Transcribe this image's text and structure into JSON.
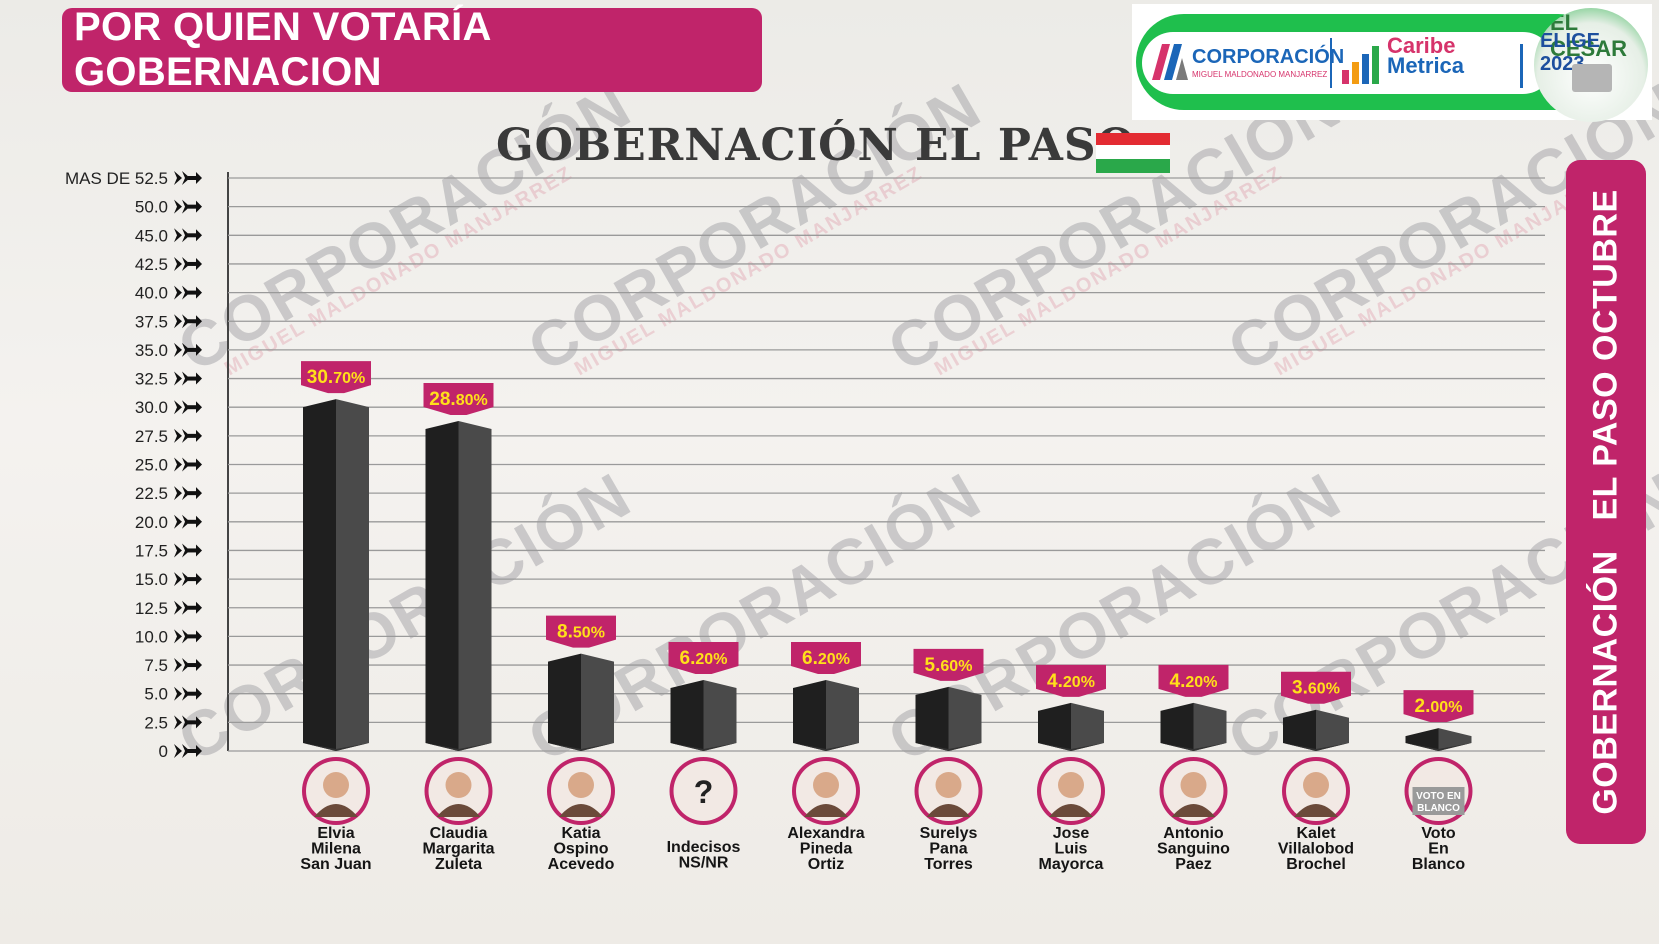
{
  "header": {
    "title": "POR QUIEN VOTARÍA GOBERNACION",
    "subtitle": "GOBERNACIÓN EL PASO",
    "side_label": "GOBERNACIÓN   EL PASO OCTUBRE"
  },
  "logos": {
    "corporacion": "CORPORACIÓN",
    "corporacion_sub": "MIGUEL MALDONADO MANJARREZ",
    "caribe": "Caribe",
    "metrica": "Metrica",
    "cesar": "EL CESAR",
    "elige": "ELIGE 2023"
  },
  "watermark": {
    "text": "CORPORACIÓN",
    "sub": "MIGUEL MALDONADO MANJARREZ"
  },
  "colors": {
    "accent": "#c0246a",
    "bar_front": "#1f1f1f",
    "bar_side": "#4a4a4a",
    "label_yellow": "#ffe01a",
    "flag_red": "#e32b32",
    "flag_green": "#2aa84a"
  },
  "chart_data": {
    "type": "bar",
    "title": "GOBERNACIÓN EL PASO",
    "y_ticks": [
      "MAS DE 52.5",
      "50.0",
      "45.0",
      "42.5",
      "40.0",
      "37.5",
      "35.0",
      "32.5",
      "30.0",
      "27.5",
      "25.0",
      "22.5",
      "20.0",
      "17.5",
      "15.0",
      "12.5",
      "10.0",
      "7.5",
      "5.0",
      "2.5",
      "0"
    ],
    "ylim": [
      0,
      52.5
    ],
    "grid": true,
    "categories": [
      [
        "Elvia",
        "Milena",
        "San Juan"
      ],
      [
        "Claudia",
        "Margarita",
        "Zuleta"
      ],
      [
        "Katia",
        "Ospino",
        "Acevedo"
      ],
      [
        "Indecisos",
        "NS/NR"
      ],
      [
        "Alexandra",
        "Pineda",
        "Ortiz"
      ],
      [
        "Surelys",
        "Pana",
        "Torres"
      ],
      [
        "Jose",
        "Luis",
        "Mayorca"
      ],
      [
        "Antonio",
        "Sanguino",
        "Paez"
      ],
      [
        "Kalet",
        "Villalobod",
        "Brochel"
      ],
      [
        "Voto",
        "En",
        "Blanco"
      ]
    ],
    "values": [
      30.7,
      28.8,
      8.5,
      6.2,
      6.2,
      5.6,
      4.2,
      4.2,
      3.6,
      2.0
    ],
    "value_labels": [
      [
        "30.",
        "70%"
      ],
      [
        "28.",
        "80%"
      ],
      [
        "8.",
        "50%"
      ],
      [
        "6.",
        "20%"
      ],
      [
        "6.",
        "20%"
      ],
      [
        "5.",
        "60%"
      ],
      [
        "4.",
        "20%"
      ],
      [
        "4.",
        "20%"
      ],
      [
        "3.",
        "60%"
      ],
      [
        "2.",
        "00%"
      ]
    ],
    "avatar_icons": [
      "portrait-icon",
      "portrait-icon",
      "portrait-icon",
      "ballot-question-icon",
      "portrait-icon",
      "portrait-icon",
      "portrait-icon",
      "portrait-icon",
      "portrait-icon",
      "blank-ballot-icon"
    ],
    "avatar_text": [
      "",
      "",
      "",
      "?",
      "",
      "",
      "",
      "",
      "",
      "VOTO EN BLANCO"
    ]
  }
}
